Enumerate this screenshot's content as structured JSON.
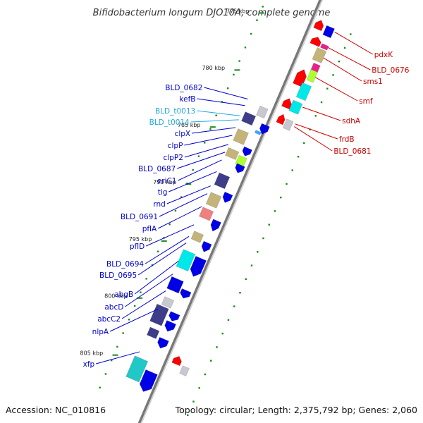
{
  "title": "Bifidobacterium longum DJO10A, complete genome",
  "footer": {
    "accession": "Accession: NC_010816",
    "topology": "Topology: circular; Length: 2,375,792 bp; Genes: 2,060"
  },
  "colors": {
    "forward_label": "#0000cc",
    "trna_label": "#22aadd",
    "reverse_label": "#cc0000",
    "backbone": "#999999",
    "tick": "#1a8a1a"
  },
  "kbp_marks": [
    {
      "label": "775 kbp"
    },
    {
      "label": "780 kbp"
    },
    {
      "label": "785 kbp"
    },
    {
      "label": "790 kbp"
    },
    {
      "label": "795 kbp"
    },
    {
      "label": "800 kbp"
    },
    {
      "label": "805 kbp"
    }
  ],
  "forward_labels": [
    {
      "text": "BLD_0682",
      "kind": "cds"
    },
    {
      "text": "kefB",
      "kind": "cds"
    },
    {
      "text": "BLD_t0013",
      "kind": "trna"
    },
    {
      "text": "BLD_t0014",
      "kind": "trna"
    },
    {
      "text": "clpX",
      "kind": "cds"
    },
    {
      "text": "clpP",
      "kind": "cds"
    },
    {
      "text": "clpP2",
      "kind": "cds"
    },
    {
      "text": "BLD_0687",
      "kind": "cds"
    },
    {
      "text": "eriC1",
      "kind": "cds"
    },
    {
      "text": "tig",
      "kind": "cds"
    },
    {
      "text": "rnd",
      "kind": "cds"
    },
    {
      "text": "BLD_0691",
      "kind": "cds"
    },
    {
      "text": "pflA",
      "kind": "cds"
    },
    {
      "text": "pflD",
      "kind": "cds"
    },
    {
      "text": "BLD_0694",
      "kind": "cds"
    },
    {
      "text": "BLD_0695",
      "kind": "cds"
    },
    {
      "text": "abgB",
      "kind": "cds"
    },
    {
      "text": "abcD",
      "kind": "cds"
    },
    {
      "text": "abcC2",
      "kind": "cds"
    },
    {
      "text": "nlpA",
      "kind": "cds"
    },
    {
      "text": "xfp",
      "kind": "cds"
    }
  ],
  "reverse_labels": [
    {
      "text": "pdxK"
    },
    {
      "text": "BLD_0676"
    },
    {
      "text": "sms1"
    },
    {
      "text": "smf"
    },
    {
      "text": "sdhA"
    },
    {
      "text": "frdB"
    },
    {
      "text": "BLD_0681"
    }
  ]
}
